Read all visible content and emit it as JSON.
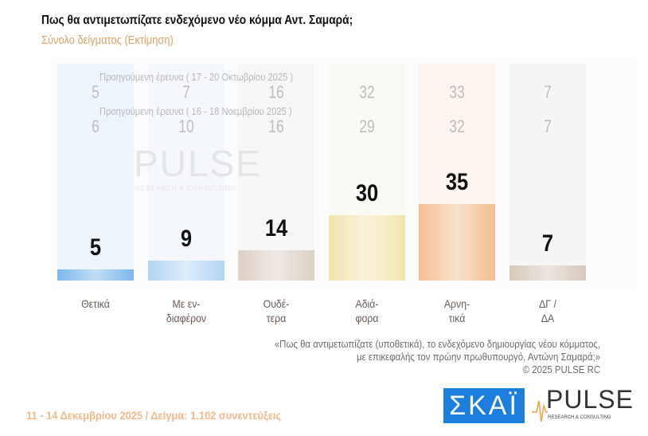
{
  "header": {
    "title": "Πως θα αντιμετωπίζατε ενδεχόμενο νέο κόμμα Αντ. Σαμαρά;",
    "subtitle": "Σύνολο δείγματος  (Εκτίμηση)"
  },
  "previous": [
    {
      "label": "Προηγούμενη έρευνα ( 17 - 20 Οκτωβρίου 2025 )",
      "values": [
        "5",
        "7",
        "16",
        "32",
        "33",
        "7"
      ]
    },
    {
      "label": "Προηγούμενη έρευνα ( 16 - 18 Νοεμβρίου 2025 )",
      "values": [
        "6",
        "10",
        "16",
        "29",
        "32",
        "7"
      ]
    }
  ],
  "chart_data": {
    "type": "bar",
    "categories": [
      "Θετικά",
      "Με εν-\nδιαφέρον",
      "Ουδέ-\nτερα",
      "Αδιά-\nφορα",
      "Αρνη-\nτικά",
      "ΔΓ /\nΔΑ"
    ],
    "values": [
      5,
      9,
      14,
      30,
      35,
      7
    ],
    "colors": [
      "#7bb7ea",
      "#b3d6f3",
      "#ddd0c4",
      "#f2e4b0",
      "#f3bf90",
      "#d6c8ba"
    ],
    "ylim": [
      0,
      35
    ]
  },
  "watermark": {
    "brand": "PULSE",
    "tagline": "RESEARCH & CONSULTING"
  },
  "note": {
    "line1": "«Πως θα αντιμετωπίζατε (υποθετικά), το ενδεχόμενο δημιουργίας νέου κόμματος,",
    "line2": "με επικεφαλής τον πρώην πρωθυπουργό, Αντώνη Σαμαρά;»",
    "copyright": "©  2025  PULSE RC"
  },
  "footer": "11 - 14 Δεκεμβρίου 2025  /  Δείγμα:  1.102 συνεντεύξεις",
  "logos": {
    "skai": "ΣΚΑΪ",
    "pulse": "PULSE",
    "pulse_tagline": "RESEARCH & CONSULTING"
  }
}
